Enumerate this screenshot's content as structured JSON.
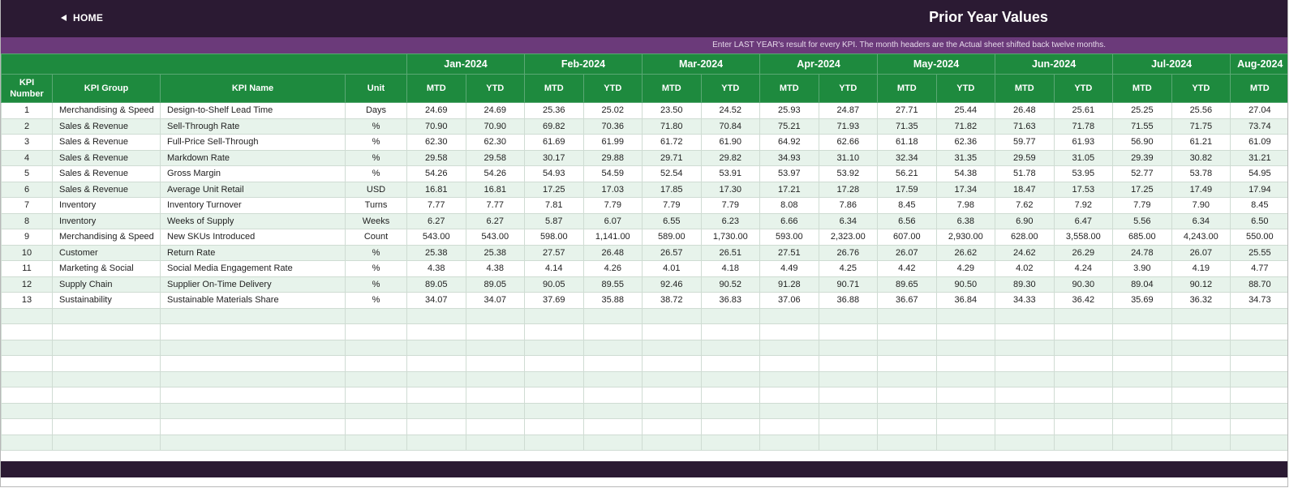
{
  "header": {
    "home": "HOME",
    "title": "Prior Year Values"
  },
  "banner": "Enter LAST YEAR's result for every KPI. The month headers are the Actual sheet shifted back twelve months.",
  "table": {
    "columns": [
      "KPI Number",
      "KPI Group",
      "KPI Name",
      "Unit"
    ],
    "months": [
      "Jan-2024",
      "Feb-2024",
      "Mar-2024",
      "Apr-2024",
      "May-2024",
      "Jun-2024",
      "Jul-2024",
      "Aug-2024"
    ],
    "subheaders": [
      "MTD",
      "YTD",
      "MTD",
      "YTD",
      "MTD",
      "YTD",
      "MTD",
      "YTD",
      "MTD",
      "YTD",
      "MTD",
      "YTD",
      "MTD",
      "YTD",
      "MTD"
    ],
    "rows": [
      [
        "1",
        "Merchandising & Speed",
        "Design-to-Shelf Lead Time",
        "Days",
        "24.69",
        "24.69",
        "25.36",
        "25.02",
        "23.50",
        "24.52",
        "25.93",
        "24.87",
        "27.71",
        "25.44",
        "26.48",
        "25.61",
        "25.25",
        "25.56",
        "27.04"
      ],
      [
        "2",
        "Sales & Revenue",
        "Sell-Through Rate",
        "%",
        "70.90",
        "70.90",
        "69.82",
        "70.36",
        "71.80",
        "70.84",
        "75.21",
        "71.93",
        "71.35",
        "71.82",
        "71.63",
        "71.78",
        "71.55",
        "71.75",
        "73.74"
      ],
      [
        "3",
        "Sales & Revenue",
        "Full-Price Sell-Through",
        "%",
        "62.30",
        "62.30",
        "61.69",
        "61.99",
        "61.72",
        "61.90",
        "64.92",
        "62.66",
        "61.18",
        "62.36",
        "59.77",
        "61.93",
        "56.90",
        "61.21",
        "61.09"
      ],
      [
        "4",
        "Sales & Revenue",
        "Markdown Rate",
        "%",
        "29.58",
        "29.58",
        "30.17",
        "29.88",
        "29.71",
        "29.82",
        "34.93",
        "31.10",
        "32.34",
        "31.35",
        "29.59",
        "31.05",
        "29.39",
        "30.82",
        "31.21"
      ],
      [
        "5",
        "Sales & Revenue",
        "Gross Margin",
        "%",
        "54.26",
        "54.26",
        "54.93",
        "54.59",
        "52.54",
        "53.91",
        "53.97",
        "53.92",
        "56.21",
        "54.38",
        "51.78",
        "53.95",
        "52.77",
        "53.78",
        "54.95"
      ],
      [
        "6",
        "Sales & Revenue",
        "Average Unit Retail",
        "USD",
        "16.81",
        "16.81",
        "17.25",
        "17.03",
        "17.85",
        "17.30",
        "17.21",
        "17.28",
        "17.59",
        "17.34",
        "18.47",
        "17.53",
        "17.25",
        "17.49",
        "17.94"
      ],
      [
        "7",
        "Inventory",
        "Inventory Turnover",
        "Turns",
        "7.77",
        "7.77",
        "7.81",
        "7.79",
        "7.79",
        "7.79",
        "8.08",
        "7.86",
        "8.45",
        "7.98",
        "7.62",
        "7.92",
        "7.79",
        "7.90",
        "8.45"
      ],
      [
        "8",
        "Inventory",
        "Weeks of Supply",
        "Weeks",
        "6.27",
        "6.27",
        "5.87",
        "6.07",
        "6.55",
        "6.23",
        "6.66",
        "6.34",
        "6.56",
        "6.38",
        "6.90",
        "6.47",
        "5.56",
        "6.34",
        "6.50"
      ],
      [
        "9",
        "Merchandising & Speed",
        "New SKUs Introduced",
        "Count",
        "543.00",
        "543.00",
        "598.00",
        "1,141.00",
        "589.00",
        "1,730.00",
        "593.00",
        "2,323.00",
        "607.00",
        "2,930.00",
        "628.00",
        "3,558.00",
        "685.00",
        "4,243.00",
        "550.00"
      ],
      [
        "10",
        "Customer",
        "Return Rate",
        "%",
        "25.38",
        "25.38",
        "27.57",
        "26.48",
        "26.57",
        "26.51",
        "27.51",
        "26.76",
        "26.07",
        "26.62",
        "24.62",
        "26.29",
        "24.78",
        "26.07",
        "25.55"
      ],
      [
        "11",
        "Marketing & Social",
        "Social Media Engagement Rate",
        "%",
        "4.38",
        "4.38",
        "4.14",
        "4.26",
        "4.01",
        "4.18",
        "4.49",
        "4.25",
        "4.42",
        "4.29",
        "4.02",
        "4.24",
        "3.90",
        "4.19",
        "4.77"
      ],
      [
        "12",
        "Supply Chain",
        "Supplier On-Time Delivery",
        "%",
        "89.05",
        "89.05",
        "90.05",
        "89.55",
        "92.46",
        "90.52",
        "91.28",
        "90.71",
        "89.65",
        "90.50",
        "89.30",
        "90.30",
        "89.04",
        "90.12",
        "88.70"
      ],
      [
        "13",
        "Sustainability",
        "Sustainable Materials Share",
        "%",
        "34.07",
        "34.07",
        "37.69",
        "35.88",
        "38.72",
        "36.83",
        "37.06",
        "36.88",
        "36.67",
        "36.84",
        "34.33",
        "36.42",
        "35.69",
        "36.32",
        "34.73"
      ]
    ]
  }
}
